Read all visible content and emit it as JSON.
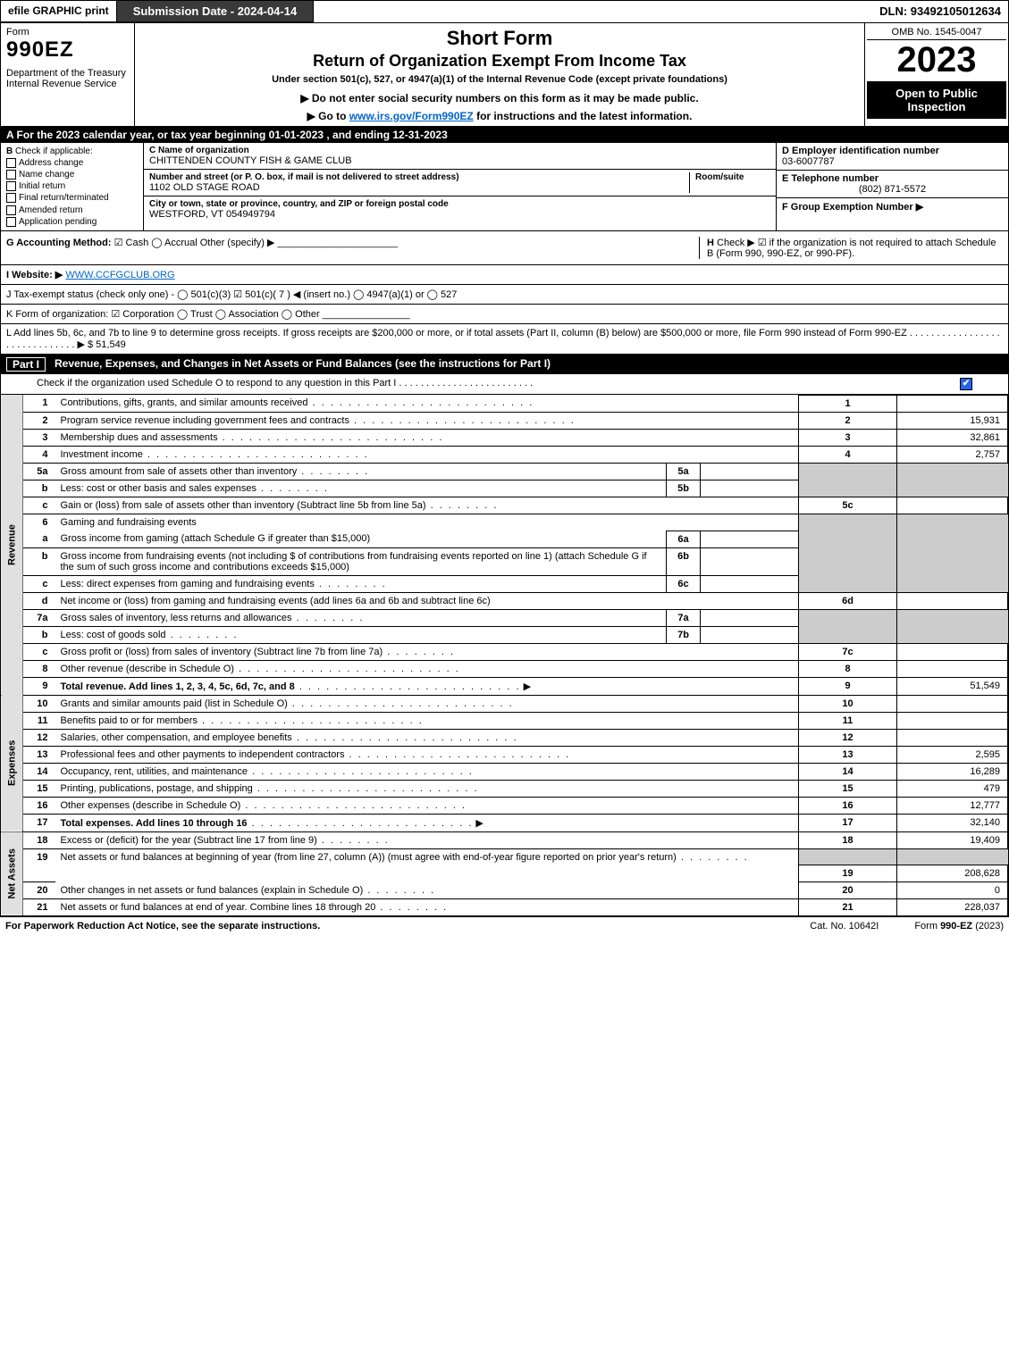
{
  "colors": {
    "black": "#000000",
    "white": "#ffffff",
    "darkbar": "#3a3a3a",
    "shade": "#cccccc",
    "sideshade": "#e0e0e0",
    "link": "#0066cc",
    "checkblue": "#2563eb"
  },
  "top": {
    "efile": "efile GRAPHIC print",
    "submission": "Submission Date - 2024-04-14",
    "dln": "DLN: 93492105012634"
  },
  "header": {
    "form_label": "Form",
    "form_no": "990EZ",
    "dept": "Department of the Treasury\nInternal Revenue Service",
    "title1": "Short Form",
    "title2": "Return of Organization Exempt From Income Tax",
    "subtitle": "Under section 501(c), 527, or 4947(a)(1) of the Internal Revenue Code (except private foundations)",
    "note": "▶ Do not enter social security numbers on this form as it may be made public.",
    "link_prefix": "▶ Go to ",
    "link": "www.irs.gov/Form990EZ",
    "link_suffix": " for instructions and the latest information.",
    "omb": "OMB No. 1545-0047",
    "year": "2023",
    "inspect": "Open to Public Inspection"
  },
  "sectionA": "A  For the 2023 calendar year, or tax year beginning 01-01-2023 , and ending 12-31-2023",
  "entity": {
    "B_label": "B",
    "B_check": "Check if applicable:",
    "B_opts": [
      "Address change",
      "Name change",
      "Initial return",
      "Final return/terminated",
      "Amended return",
      "Application pending"
    ],
    "C_label": "C Name of organization",
    "C_name": "CHITTENDEN COUNTY FISH & GAME CLUB",
    "addr_label": "Number and street (or P. O. box, if mail is not delivered to street address)",
    "addr": "1102 OLD STAGE ROAD",
    "room_label": "Room/suite",
    "room": "",
    "city_label": "City or town, state or province, country, and ZIP or foreign postal code",
    "city": "WESTFORD, VT  054949794",
    "D_label": "D Employer identification number",
    "D_val": "03-6007787",
    "E_label": "E Telephone number",
    "E_val": "(802) 871-5572",
    "F_label": "F Group Exemption Number  ▶",
    "F_val": ""
  },
  "rowG": {
    "G_label": "G Accounting Method:",
    "G_opts": "☑ Cash   ◯ Accrual   Other (specify) ▶",
    "H_label": "H",
    "H_text": "Check ▶ ☑ if the organization is not required to attach Schedule B (Form 990, 990-EZ, or 990-PF)."
  },
  "rowI": {
    "label": "I Website: ▶",
    "val": "WWW.CCFGCLUB.ORG"
  },
  "rowJ": "J Tax-exempt status (check only one) - ◯ 501(c)(3)  ☑ 501(c)( 7 ) ◀ (insert no.)  ◯ 4947(a)(1) or  ◯ 527",
  "rowK": "K Form of organization:   ☑ Corporation   ◯ Trust   ◯ Association   ◯ Other",
  "rowL": {
    "text": "L Add lines 5b, 6c, and 7b to line 9 to determine gross receipts. If gross receipts are $200,000 or more, or if total assets (Part II, column (B) below) are $500,000 or more, file Form 990 instead of Form 990-EZ  .  .  .  .  .  .  .  .  .  .  .  .  .  .  .  .  .  .  .  .  .  .  .  .  .  .  .  .  .  .  ▶ $",
    "val": "51,549"
  },
  "partI": {
    "label": "Part I",
    "title": "Revenue, Expenses, and Changes in Net Assets or Fund Balances (see the instructions for Part I)",
    "sub": "Check if the organization used Schedule O to respond to any question in this Part I  .  .  .  .  .  .  .  .  .  .  .  .  .  .  .  .  .  .  .  .  .  .  .  .  ."
  },
  "sections": {
    "revenue_label": "Revenue",
    "expenses_label": "Expenses",
    "netassets_label": "Net Assets"
  },
  "lines": {
    "1": {
      "no": "1",
      "desc": "Contributions, gifts, grants, and similar amounts received",
      "rno": "1",
      "amt": ""
    },
    "2": {
      "no": "2",
      "desc": "Program service revenue including government fees and contracts",
      "rno": "2",
      "amt": "15,931"
    },
    "3": {
      "no": "3",
      "desc": "Membership dues and assessments",
      "rno": "3",
      "amt": "32,861"
    },
    "4": {
      "no": "4",
      "desc": "Investment income",
      "rno": "4",
      "amt": "2,757"
    },
    "5a": {
      "no": "5a",
      "desc": "Gross amount from sale of assets other than inventory",
      "sub": "5a",
      "subval": ""
    },
    "5b": {
      "no": "b",
      "desc": "Less: cost or other basis and sales expenses",
      "sub": "5b",
      "subval": ""
    },
    "5c": {
      "no": "c",
      "desc": "Gain or (loss) from sale of assets other than inventory (Subtract line 5b from line 5a)",
      "rno": "5c",
      "amt": ""
    },
    "6": {
      "no": "6",
      "desc": "Gaming and fundraising events"
    },
    "6a": {
      "no": "a",
      "desc": "Gross income from gaming (attach Schedule G if greater than $15,000)",
      "sub": "6a",
      "subval": ""
    },
    "6b": {
      "no": "b",
      "desc": "Gross income from fundraising events (not including $                    of contributions from fundraising events reported on line 1) (attach Schedule G if the sum of such gross income and contributions exceeds $15,000)",
      "sub": "6b",
      "subval": ""
    },
    "6c": {
      "no": "c",
      "desc": "Less: direct expenses from gaming and fundraising events",
      "sub": "6c",
      "subval": ""
    },
    "6d": {
      "no": "d",
      "desc": "Net income or (loss) from gaming and fundraising events (add lines 6a and 6b and subtract line 6c)",
      "rno": "6d",
      "amt": ""
    },
    "7a": {
      "no": "7a",
      "desc": "Gross sales of inventory, less returns and allowances",
      "sub": "7a",
      "subval": ""
    },
    "7b": {
      "no": "b",
      "desc": "Less: cost of goods sold",
      "sub": "7b",
      "subval": ""
    },
    "7c": {
      "no": "c",
      "desc": "Gross profit or (loss) from sales of inventory (Subtract line 7b from line 7a)",
      "rno": "7c",
      "amt": ""
    },
    "8": {
      "no": "8",
      "desc": "Other revenue (describe in Schedule O)",
      "rno": "8",
      "amt": ""
    },
    "9": {
      "no": "9",
      "desc": "Total revenue. Add lines 1, 2, 3, 4, 5c, 6d, 7c, and 8",
      "rno": "9",
      "amt": "51,549",
      "bold": true,
      "arrow": true
    },
    "10": {
      "no": "10",
      "desc": "Grants and similar amounts paid (list in Schedule O)",
      "rno": "10",
      "amt": ""
    },
    "11": {
      "no": "11",
      "desc": "Benefits paid to or for members",
      "rno": "11",
      "amt": ""
    },
    "12": {
      "no": "12",
      "desc": "Salaries, other compensation, and employee benefits",
      "rno": "12",
      "amt": ""
    },
    "13": {
      "no": "13",
      "desc": "Professional fees and other payments to independent contractors",
      "rno": "13",
      "amt": "2,595"
    },
    "14": {
      "no": "14",
      "desc": "Occupancy, rent, utilities, and maintenance",
      "rno": "14",
      "amt": "16,289"
    },
    "15": {
      "no": "15",
      "desc": "Printing, publications, postage, and shipping",
      "rno": "15",
      "amt": "479"
    },
    "16": {
      "no": "16",
      "desc": "Other expenses (describe in Schedule O)",
      "rno": "16",
      "amt": "12,777"
    },
    "17": {
      "no": "17",
      "desc": "Total expenses. Add lines 10 through 16",
      "rno": "17",
      "amt": "32,140",
      "bold": true,
      "arrow": true
    },
    "18": {
      "no": "18",
      "desc": "Excess or (deficit) for the year (Subtract line 17 from line 9)",
      "rno": "18",
      "amt": "19,409"
    },
    "19": {
      "no": "19",
      "desc": "Net assets or fund balances at beginning of year (from line 27, column (A)) (must agree with end-of-year figure reported on prior year's return)",
      "rno": "19",
      "amt": "208,628"
    },
    "20": {
      "no": "20",
      "desc": "Other changes in net assets or fund balances (explain in Schedule O)",
      "rno": "20",
      "amt": "0"
    },
    "21": {
      "no": "21",
      "desc": "Net assets or fund balances at end of year. Combine lines 18 through 20",
      "rno": "21",
      "amt": "228,037"
    }
  },
  "footer": {
    "left": "For Paperwork Reduction Act Notice, see the separate instructions.",
    "mid": "Cat. No. 10642I",
    "right_prefix": "Form ",
    "right_form": "990-EZ",
    "right_suffix": " (2023)"
  }
}
